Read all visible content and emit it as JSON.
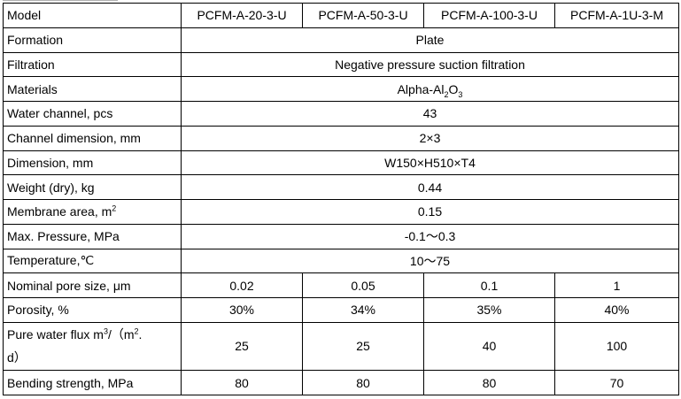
{
  "table": {
    "header": {
      "label": "Model",
      "models": [
        "PCFM-A-20-3-U",
        "PCFM-A-50-3-U",
        "PCFM-A-100-3-U",
        "PCFM-A-1U-3-M"
      ]
    },
    "formation": {
      "label": "Formation",
      "value": "Plate"
    },
    "filtration": {
      "label": "Filtration",
      "value": "Negative pressure suction filtration"
    },
    "materials": {
      "label": "Materials",
      "value_prefix": "Alpha-Al",
      "value_sub1": "2",
      "value_mid": "O",
      "value_sub2": "3"
    },
    "water_channel": {
      "label": "Water channel, pcs",
      "value": "43"
    },
    "channel_dimension": {
      "label": "Channel dimension, mm",
      "value": "2×3"
    },
    "dimension": {
      "label": "Dimension, mm",
      "value": "W150×H510×T4"
    },
    "weight": {
      "label": "Weight (dry), kg",
      "value": "0.44"
    },
    "membrane_area": {
      "label_prefix": "Membrane area, m",
      "label_sup": "2",
      "value": "0.15"
    },
    "max_pressure": {
      "label": "Max. Pressure, MPa",
      "value": "-0.1～0.3"
    },
    "temperature": {
      "label": "Temperature,℃",
      "value": "10～75"
    },
    "pore_size": {
      "label": "Nominal pore size, μm",
      "values": [
        "0.02",
        "0.05",
        "0.1",
        "1"
      ]
    },
    "porosity": {
      "label": "Porosity, %",
      "values": [
        "30%",
        "34%",
        "35%",
        "40%"
      ]
    },
    "water_flux": {
      "label_line1_prefix": "Pure water flux m",
      "label_line1_sup": "3",
      "label_line1_mid": "/（m",
      "label_line1_sup2": "2",
      "label_line1_suffix": ".",
      "label_line2": "d）",
      "values": [
        "25",
        "25",
        "40",
        "100"
      ]
    },
    "bending_strength": {
      "label": "Bending strength, MPa",
      "values": [
        "80",
        "80",
        "80",
        "70"
      ]
    }
  }
}
